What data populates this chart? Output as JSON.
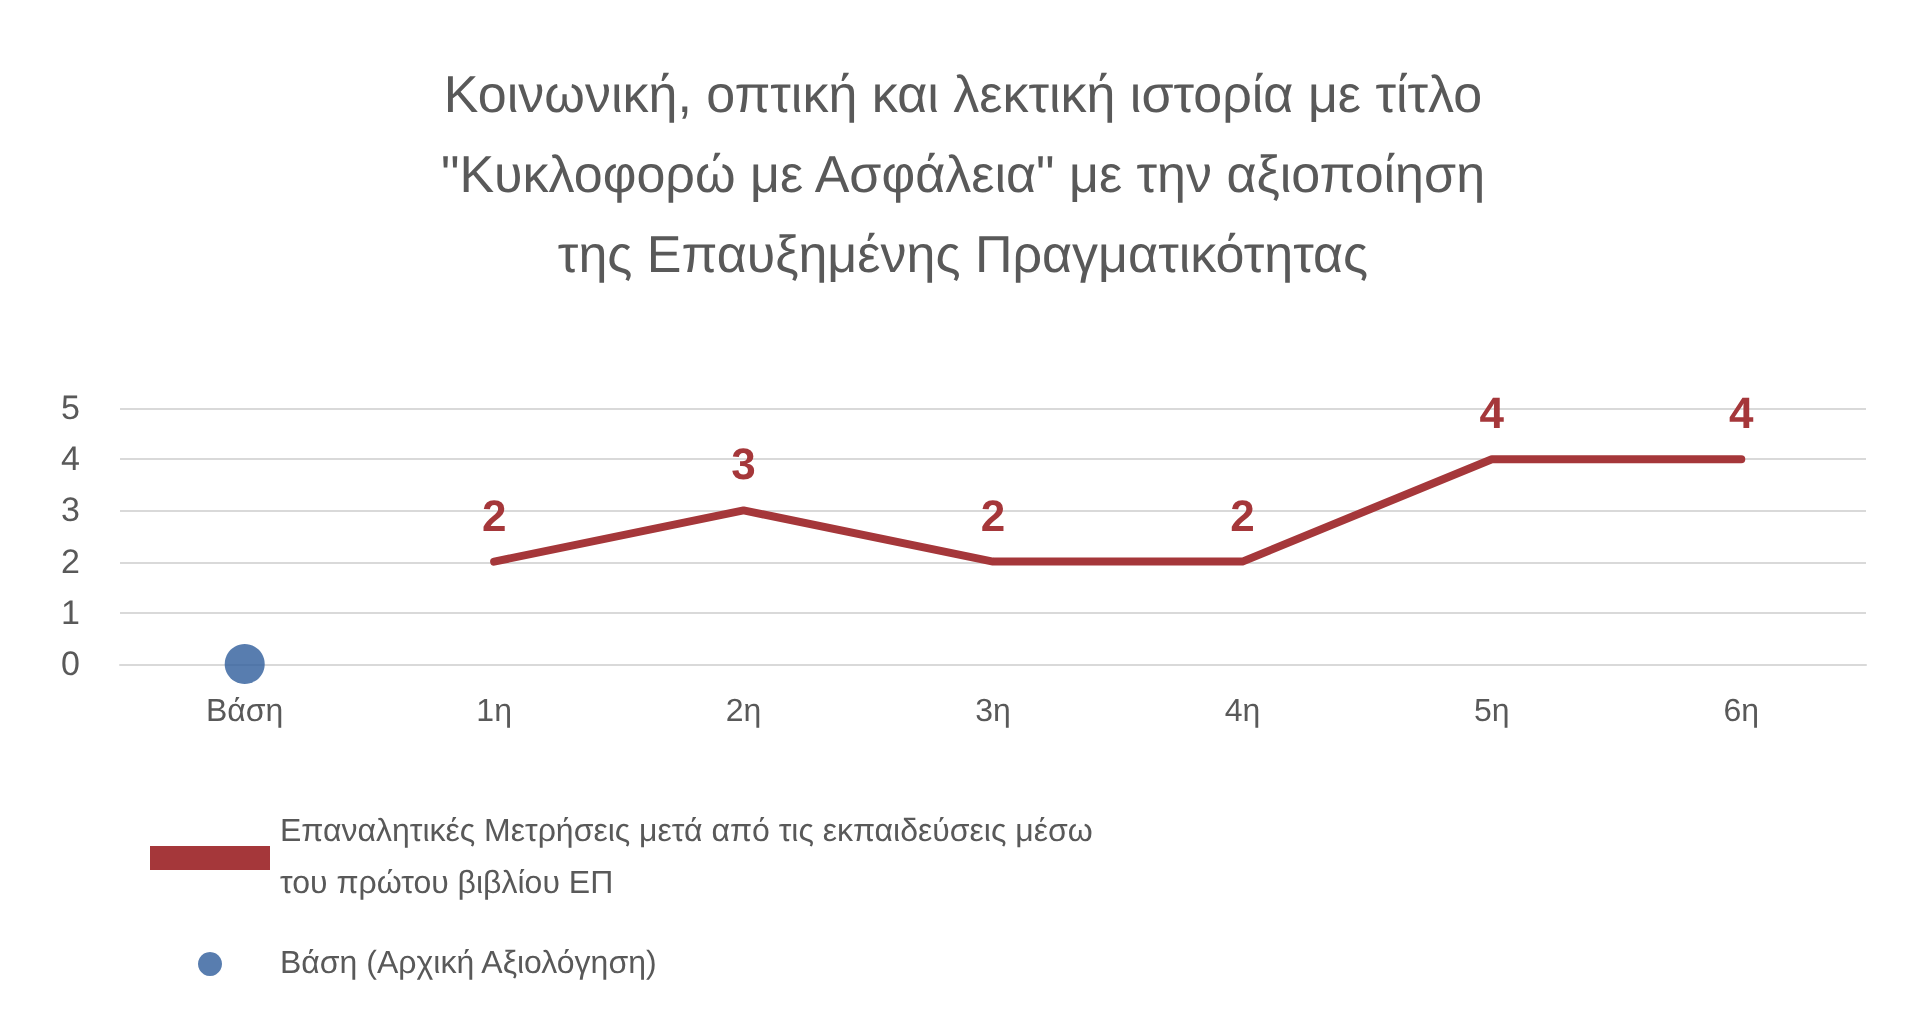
{
  "chart_data": {
    "type": "line",
    "title": "Κοινωνική, οπτική και λεκτική ιστορία με τίτλο\n\"Κυκλοφορώ με Ασφάλεια\" με την αξιοποίηση\nτης Επαυξημένης Πραγματικότητας",
    "categories": [
      "Βάση",
      "1η",
      "2η",
      "3η",
      "4η",
      "5η",
      "6η"
    ],
    "series": [
      {
        "name": "Επαναλητικές Μετρήσεις μετά από τις εκπαιδεύσεις μέσω του πρώτου βιβλίου ΕΠ",
        "color": "#a5373a",
        "values": [
          null,
          2,
          3,
          2,
          2,
          4,
          4
        ],
        "value_labels": [
          null,
          "2",
          "3",
          "2",
          "2",
          "4",
          "4"
        ],
        "marker": "none",
        "line_style": "solid"
      },
      {
        "name": "Βάση (Αρχική Αξιολόγηση)",
        "type": "scatter",
        "color": "#2e5d9b",
        "x": [
          "Βάση"
        ],
        "values": [
          0
        ],
        "marker": "circle"
      }
    ],
    "ylim": [
      0,
      5
    ],
    "yticks": [
      0,
      1,
      2,
      3,
      4,
      5
    ],
    "grid": "y",
    "legend": "bottom"
  }
}
